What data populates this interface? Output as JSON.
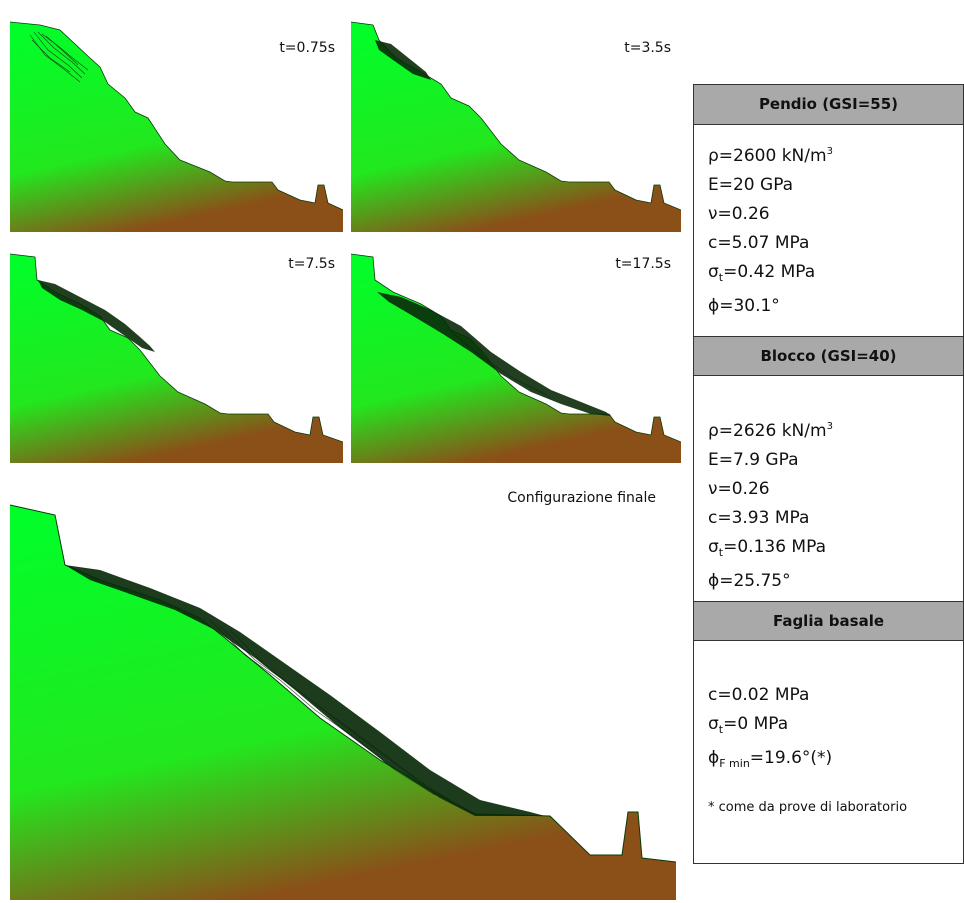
{
  "panels": [
    {
      "label": "t=0.75s"
    },
    {
      "label": "t=3.5s"
    },
    {
      "label": "t=7.5s"
    },
    {
      "label": "t=17.5s"
    }
  ],
  "final_panel": {
    "label": "Configurazione finale"
  },
  "properties": {
    "pendio": {
      "title": "Pendio (GSI=55)",
      "rho": "ρ=2600 kN/m",
      "rho_exp": "3",
      "E": "E=20 GPa",
      "nu": "ν=0.26",
      "c": "c=5.07 MPa",
      "sigma_sym": "σ",
      "sigma_sub": "t",
      "sigma_val": "=0.42 MPa",
      "phi": "ϕ=30.1°"
    },
    "blocco": {
      "title": "Blocco (GSI=40)",
      "rho": "ρ=2626 kN/m",
      "rho_exp": "3",
      "E": "E=7.9 GPa",
      "nu": "ν=0.26",
      "c": "c=3.93 MPa",
      "sigma_sym": "σ",
      "sigma_sub": "t",
      "sigma_val": "=0.136 MPa",
      "phi": "ϕ=25.75°"
    },
    "faglia": {
      "title": "Faglia basale",
      "c": "c=0.02 MPa",
      "sigma_sym": "σ",
      "sigma_sub": "t",
      "sigma_val": "=0 MPa",
      "phi_sym": "ϕ",
      "phi_sub": "F min",
      "phi_val": "=19.6°(*)",
      "note": "* come da prove di laboratorio"
    }
  },
  "colors": {
    "ground_top": "#00ff2a",
    "ground_bottom": "#8a4a1a",
    "header_bg": "#a9a9a9",
    "debris": "#0a2a0a"
  }
}
